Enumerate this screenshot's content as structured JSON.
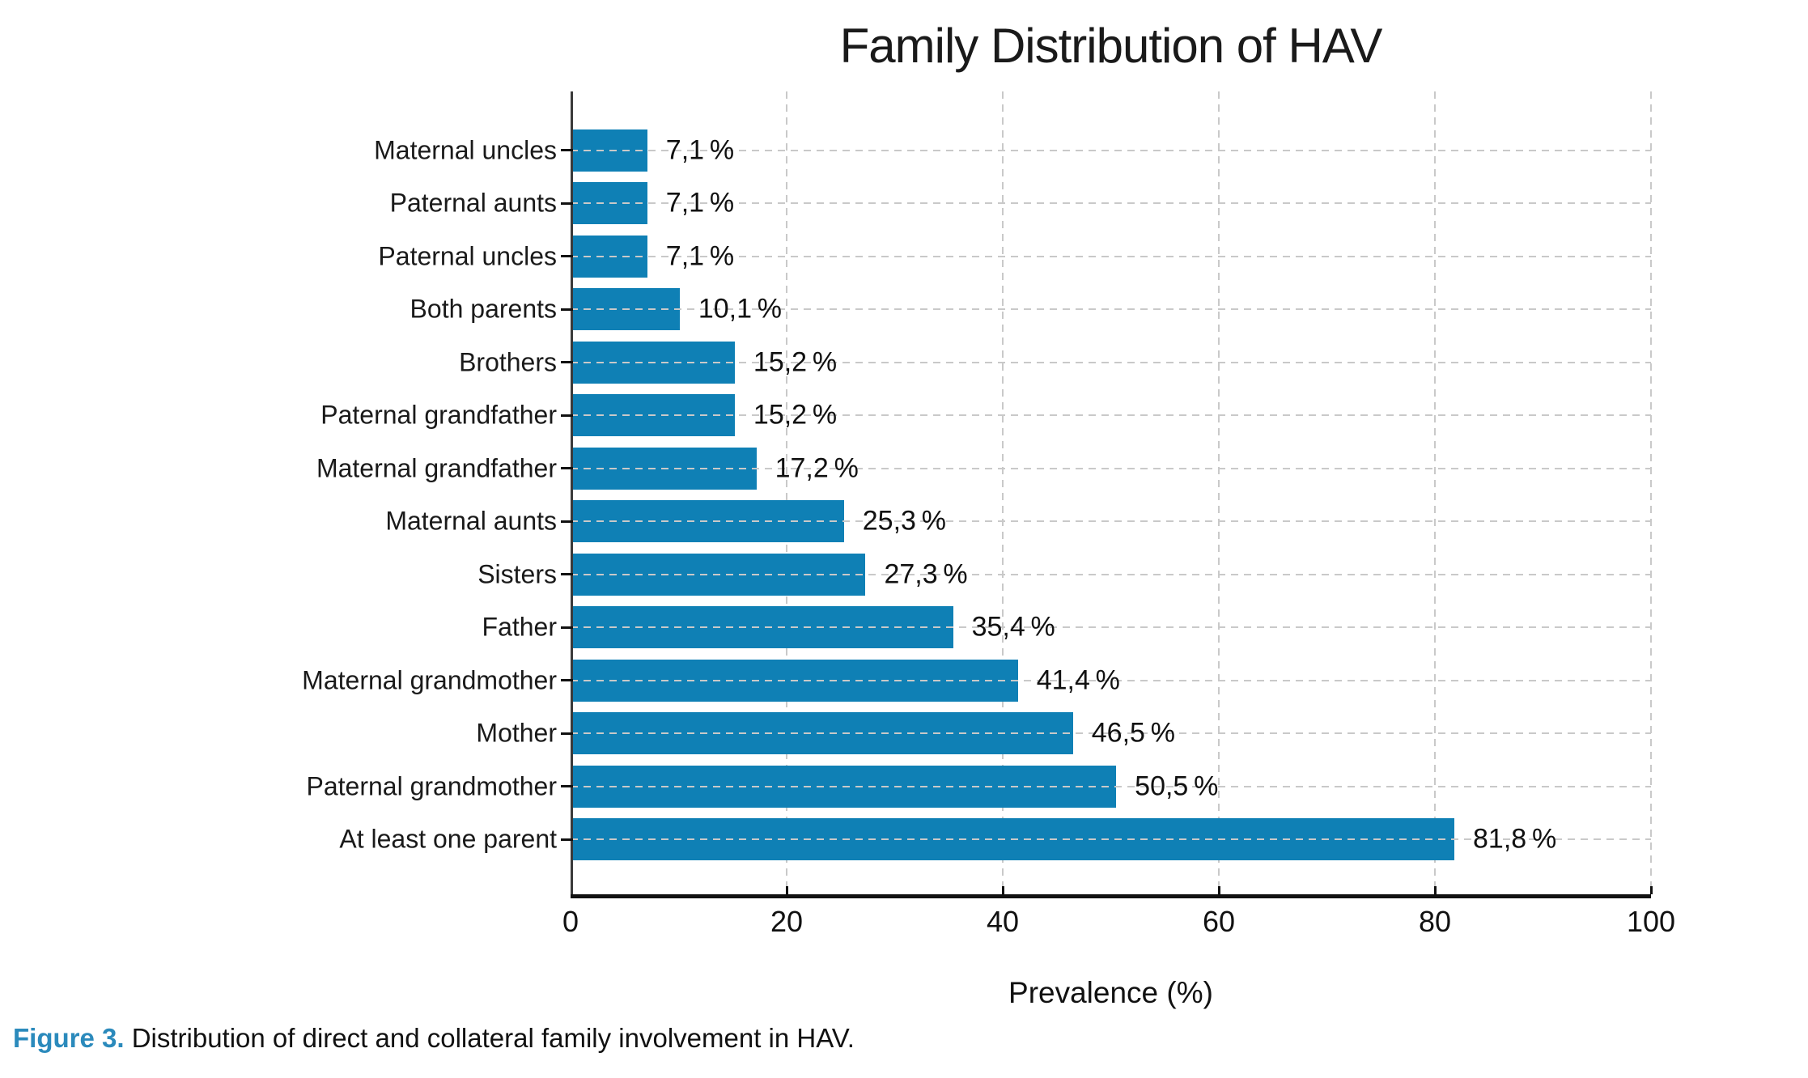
{
  "chart_data": {
    "type": "bar",
    "orientation": "horizontal",
    "title": "Family Distribution of HAV",
    "xlabel": "Prevalence (%)",
    "xlim": [
      0,
      100
    ],
    "xticks": [
      0,
      20,
      40,
      60,
      80,
      100
    ],
    "grid": "dashed, vertical at ticks under bars, horizontal at categories over bars",
    "legend": "none",
    "categories": [
      "Maternal uncles",
      "Paternal aunts",
      "Paternal uncles",
      "Both parents",
      "Brothers",
      "Paternal grandfather",
      "Maternal grandfather",
      "Maternal aunts",
      "Sisters",
      "Father",
      "Maternal grandmother",
      "Mother",
      "Paternal grandmother",
      "At least one parent"
    ],
    "values": [
      7.1,
      7.1,
      7.1,
      10.1,
      15.2,
      15.2,
      17.2,
      25.3,
      27.3,
      35.4,
      41.4,
      46.5,
      50.5,
      81.8
    ],
    "value_labels": [
      "7,1 %",
      "7,1 %",
      "7,1 %",
      "10,1 %",
      "15,2 %",
      "15,2 %",
      "17,2 %",
      "25,3 %",
      "27,3 %",
      "35,4 %",
      "41,4 %",
      "46,5 %",
      "50,5 %",
      "81,8 %"
    ]
  },
  "caption": {
    "prefix": "Figure 3.",
    "text": " Distribution of direct and collateral family involvement in HAV."
  },
  "colors": {
    "bar": "#0f80b5",
    "caption_accent": "#2b8abc",
    "gridline": "#c9c9c9"
  }
}
